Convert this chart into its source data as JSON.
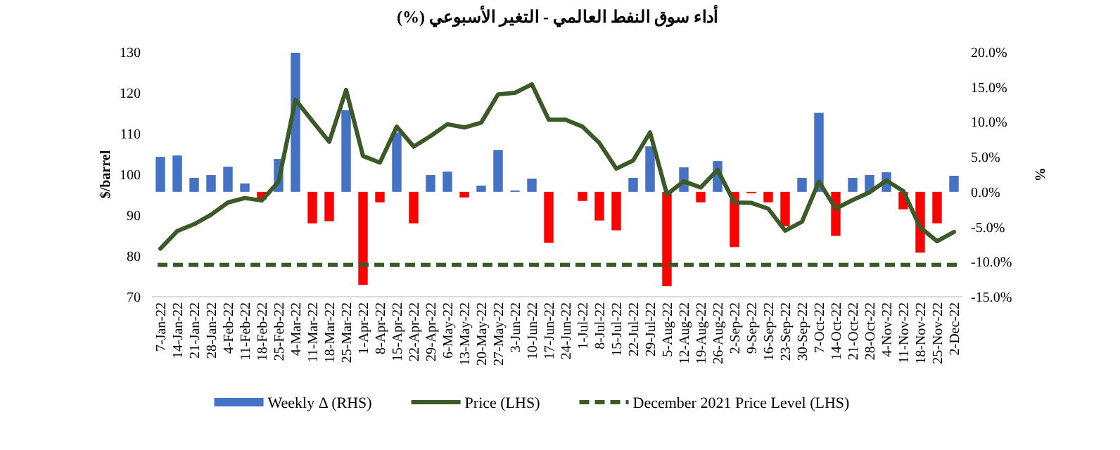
{
  "chart_data": {
    "type": "bar",
    "title": "أداء سوق النفط العالمي - التغير الأسبوعي (%)",
    "ylabel": "$/barrel",
    "y2label": "%",
    "categories": [
      "7-Jan-22",
      "14-Jan-22",
      "21-Jan-22",
      "28-Jan-22",
      "4-Feb-22",
      "11-Feb-22",
      "18-Feb-22",
      "25-Feb-22",
      "4-Mar-22",
      "11-Mar-22",
      "18-Mar-22",
      "25-Mar-22",
      "1-Apr-22",
      "8-Apr-22",
      "15-Apr-22",
      "22-Apr-22",
      "29-Apr-22",
      "6-May-22",
      "13-May-22",
      "20-May-22",
      "27-May-22",
      "3-Jun-22",
      "10-Jun-22",
      "17-Jun-22",
      "24-Jun-22",
      "1-Jul-22",
      "8-Jul-22",
      "15-Jul-22",
      "22-Jul-22",
      "29-Jul-22",
      "5-Aug-22",
      "12-Aug-22",
      "19-Aug-22",
      "26-Aug-22",
      "2-Sep-22",
      "9-Sep-22",
      "16-Sep-22",
      "23-Sep-22",
      "30-Sep-22",
      "7-Oct-22",
      "14-Oct-22",
      "21-Oct-22",
      "28-Oct-22",
      "4-Nov-22",
      "11-Nov-22",
      "18-Nov-22",
      "25-Nov-22",
      "2-Dec-22"
    ],
    "series": [
      {
        "name": "Weekly Δ (RHS)",
        "axis": "y2",
        "color": "#4472c4",
        "values": [
          5.0,
          5.2,
          2.0,
          2.4,
          3.6,
          1.2,
          -1.1,
          4.7,
          19.9,
          -4.5,
          -4.2,
          11.7,
          -13.3,
          -1.5,
          8.5,
          -4.5,
          2.4,
          2.9,
          -0.8,
          0.9,
          6.0,
          0.2,
          1.9,
          -7.3,
          null,
          -1.3,
          -4.1,
          -5.5,
          2.0,
          6.5,
          -13.5,
          3.5,
          -1.5,
          4.4,
          -7.9,
          -0.2,
          -1.5,
          -4.9,
          2.0,
          11.3,
          -6.3,
          2.0,
          2.4,
          2.8,
          -2.5,
          -8.7,
          -4.5,
          2.3
        ],
        "colors": [
          "#4472c4",
          "#4472c4",
          "#4472c4",
          "#4472c4",
          "#4472c4",
          "#4472c4",
          "#ff0000",
          "#4472c4",
          "#4472c4",
          "#ff0000",
          "#ff0000",
          "#4472c4",
          "#ff0000",
          "#ff0000",
          "#4472c4",
          "#ff0000",
          "#4472c4",
          "#4472c4",
          "#ff0000",
          "#4472c4",
          "#4472c4",
          "#4472c4",
          "#4472c4",
          "#ff0000",
          "#ff0000",
          "#ff0000",
          "#ff0000",
          "#ff0000",
          "#4472c4",
          "#4472c4",
          "#ff0000",
          "#4472c4",
          "#ff0000",
          "#4472c4",
          "#ff0000",
          "#ff0000",
          "#ff0000",
          "#ff0000",
          "#4472c4",
          "#4472c4",
          "#ff0000",
          "#4472c4",
          "#4472c4",
          "#4472c4",
          "#ff0000",
          "#ff0000",
          "#ff0000",
          "#4472c4"
        ]
      },
      {
        "type": "line",
        "name": "Price (LHS)",
        "axis": "y",
        "color": "#3b5a27",
        "line_style": "solid",
        "values": [
          81.8,
          86.1,
          87.8,
          90.1,
          93.1,
          94.2,
          93.6,
          98.2,
          118.3,
          113.1,
          108.0,
          120.7,
          104.5,
          102.9,
          111.7,
          106.8,
          109.4,
          112.3,
          111.5,
          112.7,
          119.6,
          120.0,
          122.1,
          113.4,
          113.4,
          111.7,
          107.7,
          101.4,
          103.4,
          110.3,
          95.1,
          98.3,
          96.8,
          101.1,
          93.1,
          93.0,
          91.6,
          86.2,
          88.4,
          98.2,
          91.6,
          93.7,
          95.6,
          98.5,
          95.9,
          87.0,
          83.6,
          85.9
        ]
      }
    ],
    "ref_lines": [
      {
        "axis": "y",
        "value": 77.8,
        "label": "December 2021 Price Level (LHS)",
        "color": "#3b5a27",
        "line_style": "dashed"
      }
    ],
    "ylim": [
      70,
      130
    ],
    "yticks": [
      70,
      80,
      90,
      100,
      110,
      120,
      130
    ],
    "y2lim": [
      -15,
      20
    ],
    "y2ticks": [
      {
        "value": -15,
        "label": "-15.0%"
      },
      {
        "value": -10,
        "label": "-10.0%"
      },
      {
        "value": -5,
        "label": "-5.0%"
      },
      {
        "value": 0,
        "label": "0.0%"
      },
      {
        "value": 5,
        "label": "5.0%"
      },
      {
        "value": 10,
        "label": "10.0%"
      },
      {
        "value": 15,
        "label": "15.0%"
      },
      {
        "value": 20,
        "label": "20.0%"
      }
    ],
    "legend": "bottom"
  }
}
